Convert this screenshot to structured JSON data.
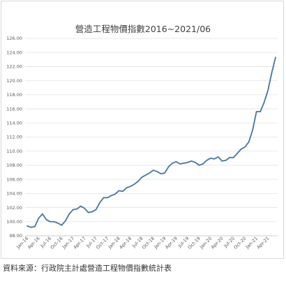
{
  "source_note": "資料來源：行政院主計處營造工程物價指數統計表",
  "chart_data": {
    "type": "line",
    "title": "營造工程物價指數2016~2021/06",
    "xlabel": "",
    "ylabel": "",
    "ylim": [
      98,
      126
    ],
    "yticks": [
      "98.00",
      "100.00",
      "102.00",
      "104.00",
      "106.00",
      "108.00",
      "110.00",
      "112.00",
      "114.00",
      "116.00",
      "118.00",
      "120.00",
      "122.00",
      "124.00",
      "126.00"
    ],
    "grid": true,
    "legend": "none",
    "line_color": "#4e7aa8",
    "x": [
      "Jan-16",
      "Feb-16",
      "Mar-16",
      "Apr-16",
      "May-16",
      "Jun-16",
      "Jul-16",
      "Aug-16",
      "Sep-16",
      "Oct-16",
      "Nov-16",
      "Dec-16",
      "Jan-17",
      "Feb-17",
      "Mar-17",
      "Apr-17",
      "May-17",
      "Jun-17",
      "Jul-17",
      "Aug-17",
      "Sep-17",
      "Oct-17",
      "Nov-17",
      "Dec-17",
      "Jan-18",
      "Feb-18",
      "Mar-18",
      "Apr-18",
      "May-18",
      "Jun-18",
      "Jul-18",
      "Aug-18",
      "Sep-18",
      "Oct-18",
      "Nov-18",
      "Dec-18",
      "Jan-19",
      "Feb-19",
      "Mar-19",
      "Apr-19",
      "May-19",
      "Jun-19",
      "Jul-19",
      "Aug-19",
      "Sep-19",
      "Oct-19",
      "Nov-19",
      "Dec-19",
      "Jan-20",
      "Feb-20",
      "Mar-20",
      "Apr-20",
      "May-20",
      "Jun-20",
      "Jul-20",
      "Aug-20",
      "Sep-20",
      "Oct-20",
      "Nov-20",
      "Dec-20",
      "Jan-21",
      "Feb-21",
      "Mar-21",
      "Apr-21",
      "May-21",
      "Jun-21"
    ],
    "xtick_labels": [
      "Jan-16",
      "Apr-16",
      "Jul-16",
      "Oct-16",
      "Jan-17",
      "Apr-17",
      "Jul-17",
      "Oct-17",
      "Jan-18",
      "Apr-18",
      "Jul-18",
      "Oct-18",
      "Jan-19",
      "Apr-19",
      "Jul-19",
      "Oct-19",
      "Jan-20",
      "Apr-20",
      "Jul-20",
      "Oct-20",
      "Jan-21",
      "Apr-21"
    ],
    "series": [
      {
        "name": "",
        "values": [
          99.4,
          99.2,
          99.3,
          100.5,
          101.1,
          100.3,
          100.0,
          100.0,
          99.8,
          99.5,
          100.1,
          101.1,
          101.7,
          101.8,
          102.2,
          101.9,
          101.3,
          101.4,
          101.7,
          102.7,
          103.4,
          103.4,
          103.7,
          103.9,
          104.4,
          104.3,
          104.8,
          105.0,
          105.3,
          105.7,
          106.3,
          106.6,
          106.9,
          107.3,
          107.1,
          106.8,
          106.9,
          107.8,
          108.3,
          108.5,
          108.2,
          108.3,
          108.4,
          108.6,
          108.4,
          108.0,
          108.2,
          108.7,
          109.0,
          108.9,
          109.2,
          108.6,
          108.7,
          109.1,
          109.1,
          109.7,
          110.3,
          110.6,
          111.3,
          113.0,
          115.6,
          115.6,
          116.9,
          118.6,
          121.1,
          123.3
        ]
      }
    ]
  }
}
